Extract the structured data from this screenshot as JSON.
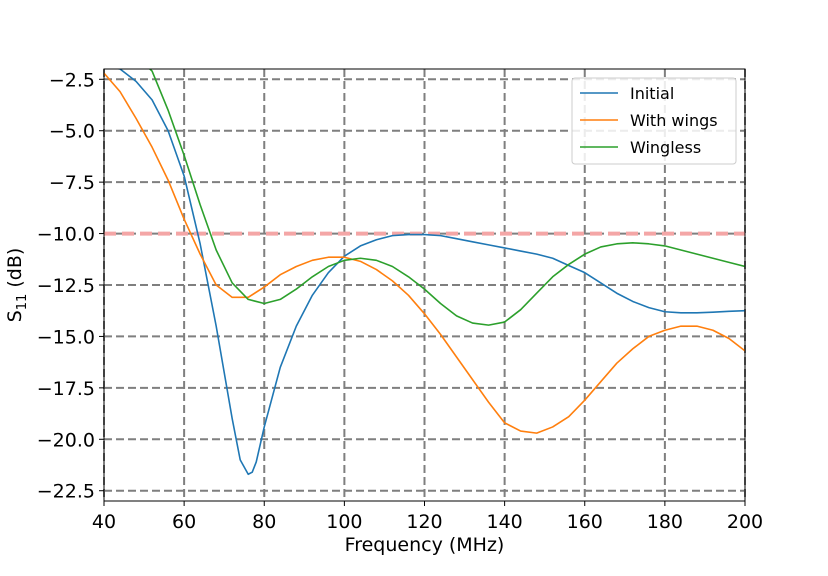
{
  "chart_data": {
    "type": "line",
    "xlabel": "Frequency (MHz)",
    "ylabel": "S",
    "ylabel_sub": "11",
    "ylabel_suffix": " (dB)",
    "xlim": [
      40,
      200
    ],
    "ylim": [
      -23.0,
      -2.0
    ],
    "xticks": [
      40,
      60,
      80,
      100,
      120,
      140,
      160,
      180,
      200
    ],
    "yticks": [
      -2.5,
      -5.0,
      -7.5,
      -10.0,
      -12.5,
      -15.0,
      -17.5,
      -20.0,
      -22.5
    ],
    "grid": true,
    "legend_position": "top-right",
    "reference_line": {
      "y": -10.0,
      "color": "#f4a6a6"
    },
    "series": [
      {
        "name": "Initial",
        "color": "#1f77b4",
        "x": [
          40,
          44,
          48,
          52,
          56,
          60,
          64,
          68,
          72,
          74,
          76,
          77,
          78,
          80,
          84,
          88,
          92,
          96,
          100,
          104,
          108,
          112,
          116,
          120,
          124,
          128,
          132,
          136,
          140,
          144,
          148,
          152,
          156,
          160,
          164,
          168,
          172,
          176,
          180,
          184,
          188,
          192,
          196,
          200
        ],
        "y": [
          -1.9,
          -2.0,
          -2.6,
          -3.5,
          -5.0,
          -7.2,
          -10.5,
          -14.5,
          -19.0,
          -21.0,
          -21.7,
          -21.6,
          -21.1,
          -19.4,
          -16.5,
          -14.5,
          -13.0,
          -11.9,
          -11.1,
          -10.6,
          -10.3,
          -10.1,
          -10.05,
          -10.05,
          -10.1,
          -10.25,
          -10.4,
          -10.55,
          -10.7,
          -10.85,
          -11.0,
          -11.2,
          -11.55,
          -11.9,
          -12.4,
          -12.9,
          -13.3,
          -13.6,
          -13.8,
          -13.85,
          -13.85,
          -13.82,
          -13.78,
          -13.75
        ]
      },
      {
        "name": "With wings",
        "color": "#ff7f0e",
        "x": [
          40,
          44,
          48,
          52,
          56,
          60,
          64,
          68,
          72,
          76,
          80,
          84,
          88,
          92,
          96,
          100,
          104,
          108,
          112,
          116,
          120,
          124,
          128,
          132,
          136,
          140,
          144,
          148,
          152,
          156,
          160,
          164,
          168,
          172,
          176,
          180,
          184,
          188,
          192,
          196,
          200
        ],
        "y": [
          -2.2,
          -3.1,
          -4.4,
          -5.8,
          -7.4,
          -9.3,
          -11.0,
          -12.5,
          -13.1,
          -13.1,
          -12.6,
          -12.0,
          -11.6,
          -11.3,
          -11.15,
          -11.15,
          -11.35,
          -11.75,
          -12.3,
          -13.0,
          -13.9,
          -14.9,
          -16.0,
          -17.1,
          -18.2,
          -19.2,
          -19.6,
          -19.7,
          -19.4,
          -18.9,
          -18.1,
          -17.2,
          -16.3,
          -15.6,
          -15.0,
          -14.7,
          -14.5,
          -14.5,
          -14.7,
          -15.1,
          -15.7
        ]
      },
      {
        "name": "Wingless",
        "color": "#2ca02c",
        "x": [
          40,
          44,
          48,
          52,
          56,
          60,
          64,
          68,
          72,
          76,
          80,
          84,
          88,
          92,
          96,
          100,
          104,
          108,
          112,
          116,
          120,
          124,
          128,
          132,
          136,
          140,
          144,
          148,
          152,
          156,
          160,
          164,
          168,
          172,
          176,
          180,
          184,
          188,
          192,
          196,
          200
        ],
        "y": [
          -0.8,
          -1.0,
          -1.4,
          -2.1,
          -4.0,
          -6.2,
          -8.6,
          -10.8,
          -12.4,
          -13.2,
          -13.4,
          -13.2,
          -12.7,
          -12.1,
          -11.6,
          -11.3,
          -11.2,
          -11.3,
          -11.6,
          -12.1,
          -12.7,
          -13.4,
          -14.0,
          -14.35,
          -14.45,
          -14.3,
          -13.7,
          -12.9,
          -12.1,
          -11.5,
          -11.0,
          -10.65,
          -10.5,
          -10.45,
          -10.5,
          -10.6,
          -10.8,
          -11.0,
          -11.2,
          -11.4,
          -11.6
        ]
      }
    ]
  }
}
